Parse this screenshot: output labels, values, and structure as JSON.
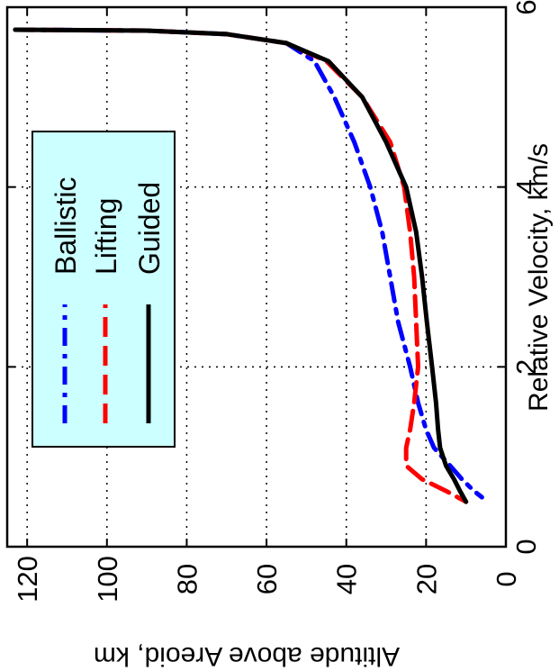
{
  "chart_data": {
    "type": "line",
    "title": "",
    "xlabel": "Relative Velocity, km/s",
    "ylabel": "Altitude above Areoid, km",
    "xlim": [
      0,
      6
    ],
    "ylim": [
      0,
      125
    ],
    "xticks": [
      "0",
      "2",
      "4",
      "6"
    ],
    "yticks": [
      "0",
      "20",
      "40",
      "60",
      "80",
      "100",
      "120"
    ],
    "grid": true,
    "legend_position": "top-left",
    "orientation": "rotated 90 degrees clockwise",
    "series": [
      {
        "name": "Ballistic",
        "color": "#0000ff",
        "style": "dash-dot",
        "x": [
          5.75,
          5.74,
          5.7,
          5.6,
          5.4,
          5.0,
          4.5,
          4.0,
          3.5,
          3.0,
          2.5,
          2.0,
          1.6,
          1.3,
          1.1,
          0.9,
          0.75,
          0.62,
          0.55
        ],
        "y": [
          123,
          90,
          70,
          55,
          48,
          43,
          38,
          34,
          31,
          29,
          27,
          24,
          22,
          20,
          18,
          14,
          11,
          8,
          6
        ]
      },
      {
        "name": "Lifting",
        "color": "#ff0000",
        "style": "dashed",
        "x": [
          5.75,
          5.74,
          5.7,
          5.6,
          5.4,
          5.0,
          4.5,
          4.0,
          3.5,
          3.0,
          2.5,
          2.0,
          1.6,
          1.3,
          1.1,
          0.9,
          0.75,
          0.62,
          0.5
        ],
        "y": [
          123,
          90,
          70,
          55,
          45,
          36,
          29,
          25.5,
          24,
          23,
          22.5,
          22,
          23,
          24,
          25,
          25,
          21,
          15,
          10
        ]
      },
      {
        "name": "Guided",
        "color": "#000000",
        "style": "solid",
        "x": [
          5.75,
          5.74,
          5.7,
          5.6,
          5.4,
          5.0,
          4.5,
          4.0,
          3.5,
          3.0,
          2.5,
          2.0,
          1.6,
          1.3,
          1.1,
          0.9,
          0.75,
          0.62,
          0.5
        ],
        "y": [
          123,
          90,
          70,
          55,
          44.5,
          36,
          30,
          25,
          22.5,
          21,
          19.8,
          18.5,
          17.5,
          17,
          16.5,
          15,
          13,
          11.5,
          10
        ]
      }
    ]
  }
}
